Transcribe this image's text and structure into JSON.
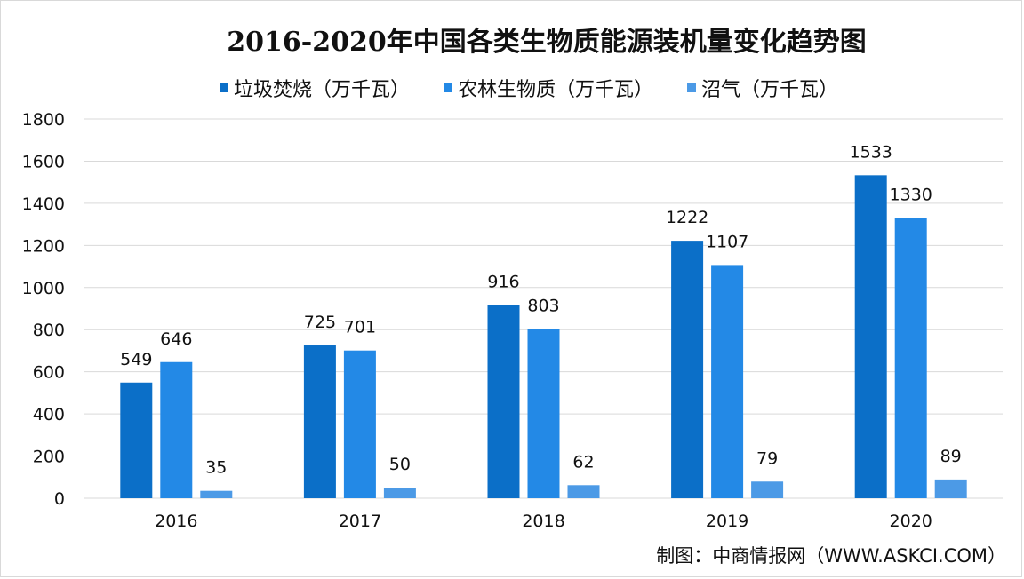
{
  "chart_data": {
    "type": "bar",
    "title": "2016-2020年中国各类生物质能源装机量变化趋势图",
    "categories": [
      "2016",
      "2017",
      "2018",
      "2019",
      "2020"
    ],
    "series": [
      {
        "name": "垃圾焚烧（万千瓦）",
        "values": [
          549,
          725,
          916,
          1222,
          1533
        ],
        "color": "#0b6fc8"
      },
      {
        "name": "农林生物质（万千瓦）",
        "values": [
          646,
          701,
          803,
          1107,
          1330
        ],
        "color": "#2389e6"
      },
      {
        "name": "沼气（万千瓦）",
        "values": [
          35,
          50,
          62,
          79,
          89
        ],
        "color": "#4c9ae6"
      }
    ],
    "ylim": [
      0,
      1800
    ],
    "yticks": [
      0,
      200,
      400,
      600,
      800,
      1000,
      1200,
      1400,
      1600,
      1800
    ],
    "grid": true,
    "legend": "top"
  },
  "source_text": "制图：中商情报网（WWW.ASKCI.COM）"
}
